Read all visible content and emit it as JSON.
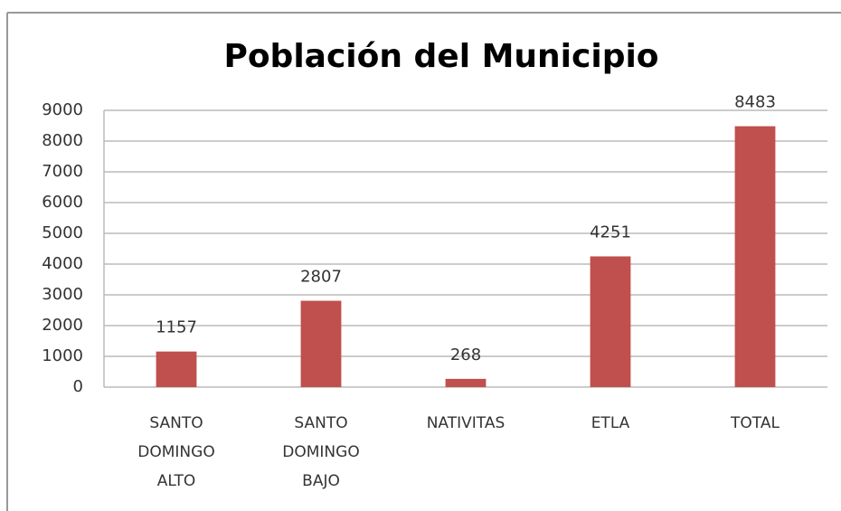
{
  "chart_data": {
    "type": "bar",
    "title": "Población del Municipio",
    "categories": [
      "SANTO DOMINGO ALTO",
      "SANTO DOMINGO BAJO",
      "NATIVITAS",
      "ETLA",
      "TOTAL"
    ],
    "values": [
      1157,
      2807,
      268,
      4251,
      8483
    ],
    "color": "#c0504d",
    "ylim": [
      0,
      9000
    ],
    "yticks": [
      0,
      1000,
      2000,
      3000,
      4000,
      5000,
      6000,
      7000,
      8000,
      9000
    ],
    "grid": true
  }
}
